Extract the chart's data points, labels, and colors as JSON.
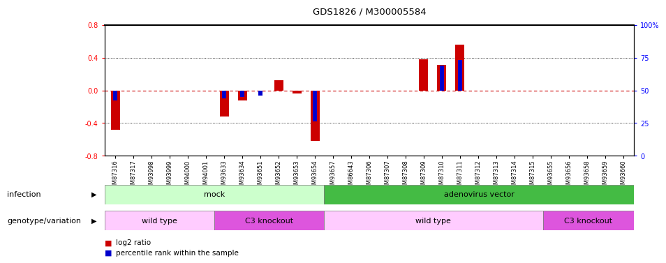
{
  "title": "GDS1826 / M300005584",
  "samples": [
    "GSM87316",
    "GSM87317",
    "GSM93998",
    "GSM93999",
    "GSM94000",
    "GSM94001",
    "GSM93633",
    "GSM93634",
    "GSM93651",
    "GSM93652",
    "GSM93653",
    "GSM93654",
    "GSM93657",
    "GSM86643",
    "GSM87306",
    "GSM87307",
    "GSM87308",
    "GSM87309",
    "GSM87310",
    "GSM87311",
    "GSM87312",
    "GSM87313",
    "GSM87314",
    "GSM87315",
    "GSM93655",
    "GSM93656",
    "GSM93658",
    "GSM93659",
    "GSM93660"
  ],
  "log2_ratio": [
    -0.48,
    0.0,
    0.0,
    0.0,
    0.0,
    0.0,
    -0.32,
    -0.12,
    0.0,
    0.12,
    -0.04,
    -0.62,
    0.0,
    0.0,
    0.0,
    0.0,
    0.0,
    0.38,
    0.31,
    0.56,
    0.0,
    0.0,
    0.0,
    0.0,
    0.0,
    0.0,
    0.0,
    0.0,
    0.0
  ],
  "percentile": [
    -0.12,
    0.0,
    0.0,
    0.0,
    0.0,
    0.0,
    -0.1,
    -0.08,
    -0.06,
    0.0,
    0.0,
    -0.38,
    0.0,
    0.0,
    0.0,
    0.0,
    0.0,
    0.0,
    0.3,
    0.37,
    0.0,
    0.0,
    0.0,
    0.0,
    0.0,
    0.0,
    0.0,
    0.0,
    0.0
  ],
  "ylim": [
    -0.8,
    0.8
  ],
  "yticks_left": [
    -0.8,
    -0.4,
    0.0,
    0.4,
    0.8
  ],
  "yticks_right_vals": [
    -0.8,
    -0.4,
    0.0,
    0.4,
    0.8
  ],
  "yticks_right_labels": [
    "0",
    "25",
    "50",
    "75",
    "100%"
  ],
  "bar_color_red": "#cc0000",
  "bar_color_blue": "#0000cc",
  "zero_line_color": "#cc0000",
  "dotted_line_color": "#000000",
  "infection_groups": [
    {
      "label": "mock",
      "start": 0,
      "end": 12,
      "color": "#ccffcc"
    },
    {
      "label": "adenovirus vector",
      "start": 12,
      "end": 29,
      "color": "#44bb44"
    }
  ],
  "genotype_groups": [
    {
      "label": "wild type",
      "start": 0,
      "end": 6,
      "color": "#ffccff"
    },
    {
      "label": "C3 knockout",
      "start": 6,
      "end": 12,
      "color": "#dd55dd"
    },
    {
      "label": "wild type",
      "start": 12,
      "end": 24,
      "color": "#ffccff"
    },
    {
      "label": "C3 knockout",
      "start": 24,
      "end": 29,
      "color": "#dd55dd"
    }
  ],
  "legend_items": [
    {
      "label": "log2 ratio",
      "color": "#cc0000"
    },
    {
      "label": "percentile rank within the sample",
      "color": "#0000cc"
    }
  ],
  "infection_label": "infection",
  "genotype_label": "genotype/variation"
}
